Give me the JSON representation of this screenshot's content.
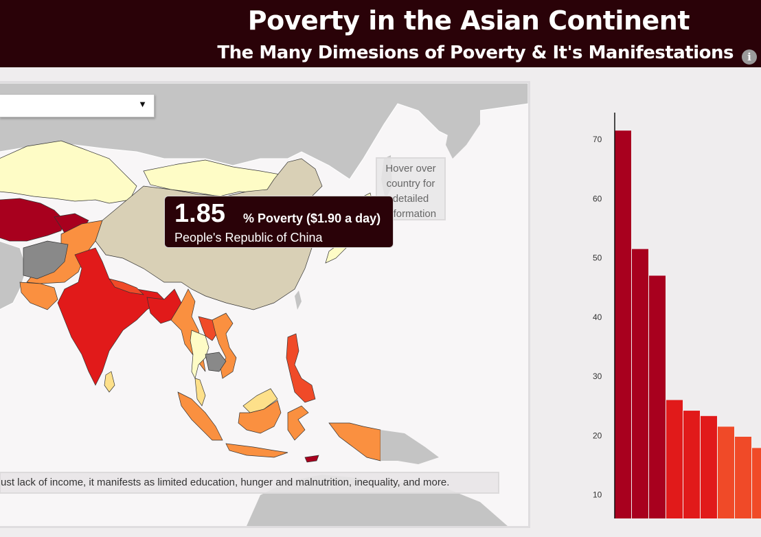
{
  "header": {
    "title": "Poverty in the Asian Continent",
    "subtitle": "The Many Dimesions of Poverty & It's Manifestations",
    "info_icon": "i"
  },
  "map": {
    "dropdown": {
      "value": "",
      "arrow": "▼"
    },
    "hover_hint": [
      "Hover over",
      "country for",
      "detailed",
      "information"
    ],
    "tooltip": {
      "value": "1.85",
      "label": "% Poverty ($1.90 a day)",
      "country": "People's Republic of China"
    },
    "caption": "ust lack of income, it manifests as limited education, hunger and malnutrition, inequality, and more.",
    "colors": {
      "very_high": "#a8001e",
      "high": "#e11a1a",
      "med_high": "#f04a28",
      "medium": "#fa9040",
      "low": "#fde08a",
      "very_low": "#fefcc6",
      "china": "#d9d0b6",
      "no_data": "#898989",
      "non_asia": "#c4c4c4",
      "sea": "#f8f6f7"
    }
  },
  "chart_data": {
    "type": "bar",
    "values": [
      71.5,
      51.5,
      47,
      26,
      24.2,
      23.3,
      21.5,
      19.8,
      17.9
    ],
    "colors": [
      "#a8001e",
      "#a8001e",
      "#a8001e",
      "#e11a1a",
      "#e11a1a",
      "#e11a1a",
      "#f04a28",
      "#f04a28",
      "#f04a28"
    ],
    "yticks": [
      10,
      20,
      30,
      40,
      50,
      60,
      70
    ],
    "ylim": [
      6,
      75
    ]
  }
}
